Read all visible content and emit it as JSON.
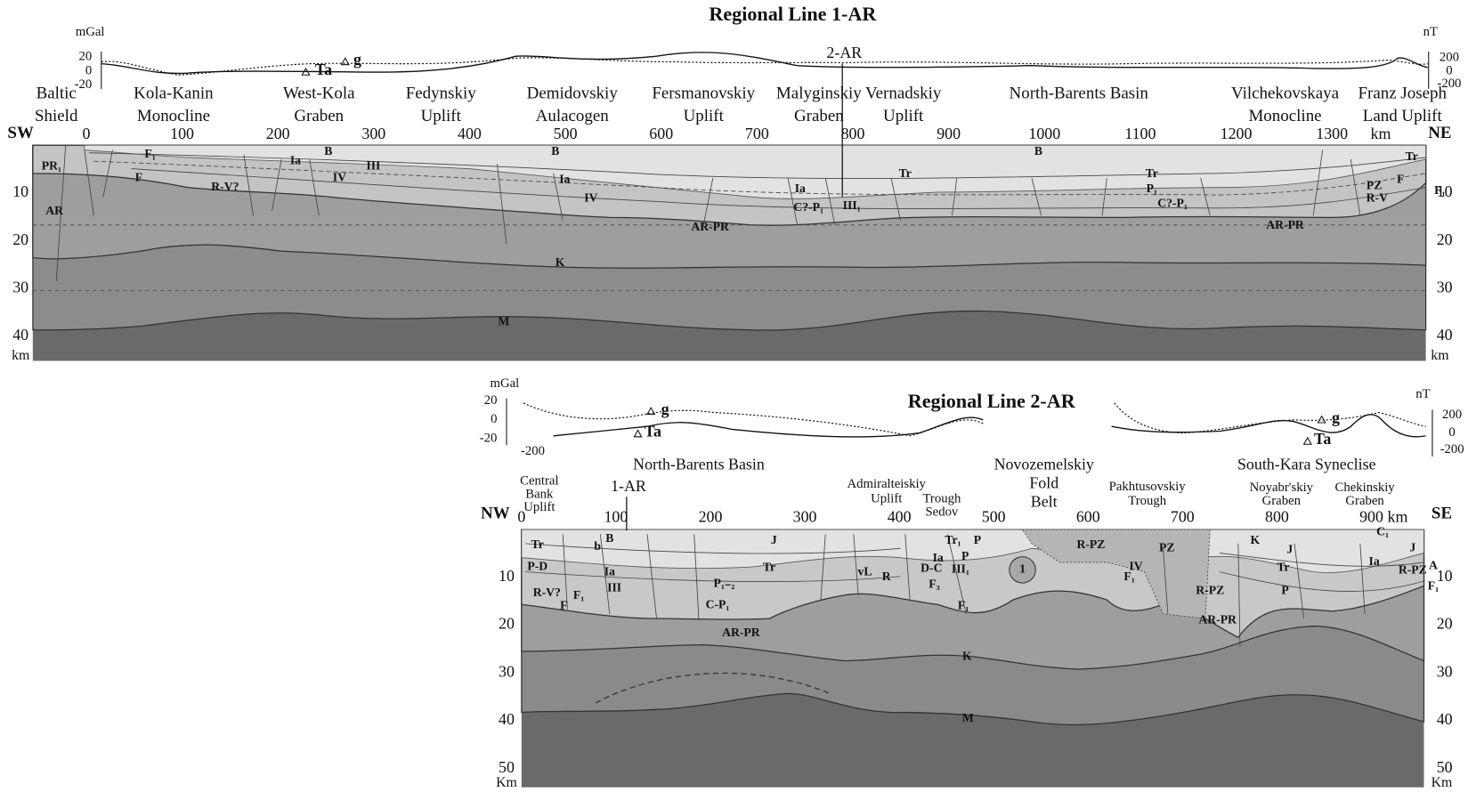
{
  "line1": {
    "title": "Regional Line 1-AR",
    "gravity_unit": "mGal",
    "magnetic_unit": "nT",
    "gravity_ticks": [
      20,
      0,
      -20
    ],
    "magnetic_ticks": [
      200,
      0,
      -200
    ],
    "anomaly_labels": [
      "Ta",
      "g"
    ],
    "crossing_line": "2-AR",
    "direction": [
      "SW",
      "NE"
    ],
    "distance_ticks": [
      0,
      100,
      200,
      300,
      400,
      500,
      600,
      700,
      800,
      900,
      1000,
      1100,
      1200,
      1300
    ],
    "distance_unit": "km",
    "depth_ticks": [
      10,
      20,
      30,
      40
    ],
    "depth_unit": "km",
    "regions": [
      {
        "lines": [
          "Baltic",
          "Shield"
        ]
      },
      {
        "lines": [
          "Kola-Kanin",
          "Monocline"
        ]
      },
      {
        "lines": [
          "West-Kola",
          "Graben"
        ]
      },
      {
        "lines": [
          "Fedynskiy",
          "Uplift"
        ]
      },
      {
        "lines": [
          "Demidovskiy",
          "Aulacogen"
        ]
      },
      {
        "lines": [
          "Fersmanovskiy",
          "Uplift"
        ]
      },
      {
        "lines": [
          "Malyginskiy",
          "Graben"
        ]
      },
      {
        "lines": [
          "Vernadskiy",
          "Uplift"
        ]
      },
      {
        "lines": [
          "North-Barents Basin"
        ]
      },
      {
        "lines": [
          "Vilchekovskaya",
          "Monocline"
        ]
      },
      {
        "lines": [
          "Franz Joseph",
          "Land Uplift"
        ]
      }
    ],
    "units": [
      "PR₁",
      "AR",
      "F₁",
      "F",
      "B",
      "Ia",
      "III",
      "IV",
      "R-V?",
      "B",
      "Ia",
      "IV",
      "AR-PR",
      "Ia",
      "C?-P₁",
      "III₁",
      "Tr",
      "B",
      "Tr",
      "P₁",
      "C?-P₁",
      "AR-PR",
      "Tr",
      "F",
      "PZ",
      "R-V",
      "F₁",
      "K",
      "M"
    ]
  },
  "line2": {
    "title": "Regional Line 2-AR",
    "gravity_unit": "mGal",
    "magnetic_unit": "nT",
    "gravity_ticks": [
      20,
      0,
      -20
    ],
    "magnetic_ticks": [
      200,
      0,
      -200
    ],
    "magnetic_left_label": -200,
    "anomaly_labels": [
      "g",
      "Ta",
      "g",
      "Ta"
    ],
    "crossing_line": "1-AR",
    "direction": [
      "NW",
      "SE"
    ],
    "distance_ticks": [
      0,
      100,
      200,
      300,
      400,
      500,
      600,
      700,
      800,
      900
    ],
    "distance_unit": "km",
    "depth_ticks": [
      10,
      20,
      30,
      40,
      50
    ],
    "depth_unit": "Km",
    "regions": [
      {
        "lines": [
          "Central",
          "Bank",
          "Uplift"
        ]
      },
      {
        "lines": [
          "North-Barents Basin"
        ]
      },
      {
        "lines": [
          "Admiralteiskiy",
          "Uplift"
        ]
      },
      {
        "lines": [
          "Trough",
          "Sedov"
        ]
      },
      {
        "lines": [
          "Novozemelskiy",
          "Fold",
          "Belt"
        ]
      },
      {
        "lines": [
          "Pakhtusovskiy",
          "Trough"
        ]
      },
      {
        "lines": [
          "South-Kara Syneclise"
        ]
      },
      {
        "lines": [
          "Noyabr'skiy",
          "Graben"
        ]
      },
      {
        "lines": [
          "Chekinskiy",
          "Graben"
        ]
      }
    ],
    "units": [
      "Tr",
      "B",
      "b",
      "J",
      "P-D",
      "Ia",
      "III",
      "R-V?",
      "F₁",
      "F",
      "Tr",
      "P₁₋₂",
      "C-P₁",
      "AR-PR",
      "vL",
      "R",
      "Tr₁",
      "P",
      "Ia",
      "P",
      "D-C",
      "III₁",
      "F₃",
      "F₁",
      "1",
      "R-PZ",
      "IV",
      "F₁",
      "PZ",
      "R-PZ",
      "AR-PR",
      "K",
      "J",
      "Tr",
      "P",
      "Ia",
      "C₁",
      "J",
      "R-PZ",
      "A",
      "F₁",
      "K",
      "M"
    ]
  }
}
